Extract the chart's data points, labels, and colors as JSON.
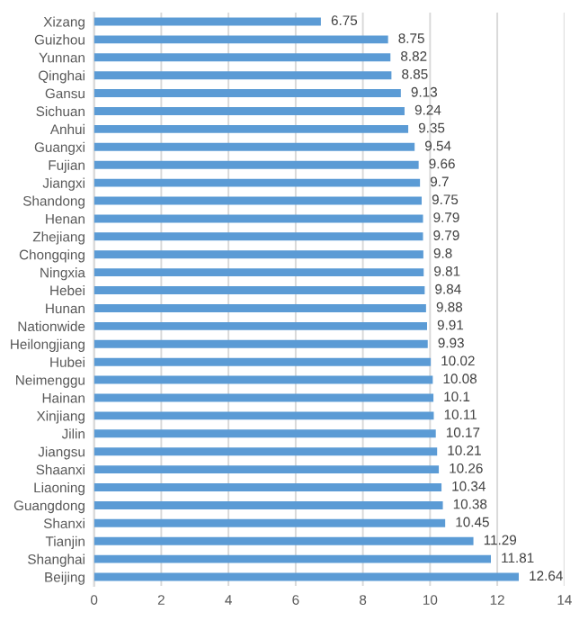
{
  "chart_data": {
    "type": "bar",
    "orientation": "horizontal",
    "categories": [
      "Xizang",
      "Guizhou",
      "Yunnan",
      "Qinghai",
      "Gansu",
      "Sichuan",
      "Anhui",
      "Guangxi",
      "Fujian",
      "Jiangxi",
      "Shandong",
      "Henan",
      "Zhejiang",
      "Chongqing",
      "Ningxia",
      "Hebei",
      "Hunan",
      "Nationwide",
      "Heilongjiang",
      "Hubei",
      "Neimenggu",
      "Hainan",
      "Xinjiang",
      "Jilin",
      "Jiangsu",
      "Shaanxi",
      "Liaoning",
      "Guangdong",
      "Shanxi",
      "Tianjin",
      "Shanghai",
      "Beijing"
    ],
    "values": [
      6.75,
      8.75,
      8.82,
      8.85,
      9.13,
      9.24,
      9.35,
      9.54,
      9.66,
      9.7,
      9.75,
      9.79,
      9.79,
      9.8,
      9.81,
      9.84,
      9.88,
      9.91,
      9.93,
      10.02,
      10.08,
      10.1,
      10.11,
      10.17,
      10.21,
      10.26,
      10.34,
      10.38,
      10.45,
      11.29,
      11.81,
      12.64
    ],
    "color": "#5b9bd5",
    "xlim": [
      0,
      14
    ],
    "xticks": [
      0,
      2,
      4,
      6,
      8,
      10,
      12,
      14
    ],
    "grid": "x",
    "data_labels": true
  }
}
